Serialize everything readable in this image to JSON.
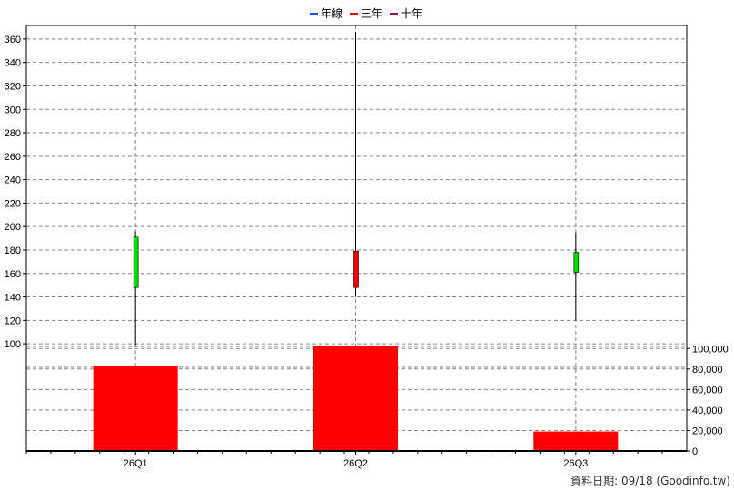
{
  "colors": {
    "up": "#00dd00",
    "down": "#ff0000",
    "volume": "#ff0000",
    "wick": "#000000",
    "grid": "#888888",
    "frame": "#000000",
    "legend_year": "#0055ff",
    "legend_three": "#ff0000",
    "legend_ten": "#aa0066"
  },
  "legend": [
    {
      "label": "年線",
      "color_key": "legend_year"
    },
    {
      "label": "三年",
      "color_key": "legend_three"
    },
    {
      "label": "十年",
      "color_key": "legend_ten"
    }
  ],
  "footer": "資料日期: 09/18  (Goodinfo.tw)",
  "chart_data": [
    {
      "type": "candlestick",
      "categories": [
        "26Q1",
        "26Q2",
        "26Q3"
      ],
      "candles": [
        {
          "open": 148,
          "close": 191,
          "high": 196,
          "low": 99
        },
        {
          "open": 179,
          "close": 148,
          "high": 366,
          "low": 140
        },
        {
          "open": 161,
          "close": 178,
          "high": 195,
          "low": 120
        }
      ],
      "ylim": [
        90,
        370
      ],
      "yticks": [
        100,
        120,
        140,
        160,
        180,
        200,
        220,
        240,
        260,
        280,
        300,
        320,
        340,
        360
      ],
      "grid": true,
      "legend_position": "top-center"
    },
    {
      "type": "bar",
      "categories": [
        "26Q1",
        "26Q2",
        "26Q3"
      ],
      "values": [
        83000,
        102000,
        19000
      ],
      "ylim": [
        0,
        102000
      ],
      "yticks": [
        0,
        20000,
        40000,
        60000,
        80000,
        100000
      ],
      "ytick_labels": [
        "0",
        "20,000",
        "40,000",
        "60,000",
        "80,000",
        "100,000"
      ],
      "grid": true,
      "axis_side": "right"
    }
  ]
}
